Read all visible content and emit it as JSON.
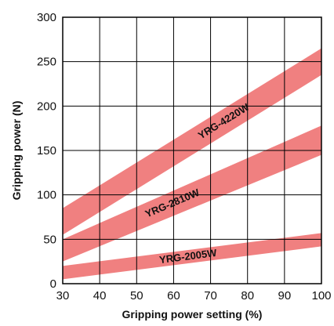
{
  "chart_data": {
    "type": "area",
    "xlabel": "Gripping power setting (%)",
    "ylabel": "Gripping power (N)",
    "xlim": [
      30,
      100
    ],
    "ylim": [
      0,
      300
    ],
    "xticks": [
      30,
      40,
      50,
      60,
      70,
      80,
      90,
      100
    ],
    "yticks": [
      0,
      50,
      100,
      150,
      200,
      250,
      300
    ],
    "grid": true,
    "band_color": "#f08080",
    "series": [
      {
        "name": "YRG-4220W",
        "x": [
          30,
          100
        ],
        "lower": [
          55,
          235
        ],
        "upper": [
          85,
          265
        ]
      },
      {
        "name": "YRG-2810W",
        "x": [
          30,
          100
        ],
        "lower": [
          25,
          145
        ],
        "upper": [
          50,
          178
        ]
      },
      {
        "name": "YRG-2005W",
        "x": [
          30,
          100
        ],
        "lower": [
          5,
          42
        ],
        "upper": [
          20,
          57
        ]
      }
    ]
  }
}
